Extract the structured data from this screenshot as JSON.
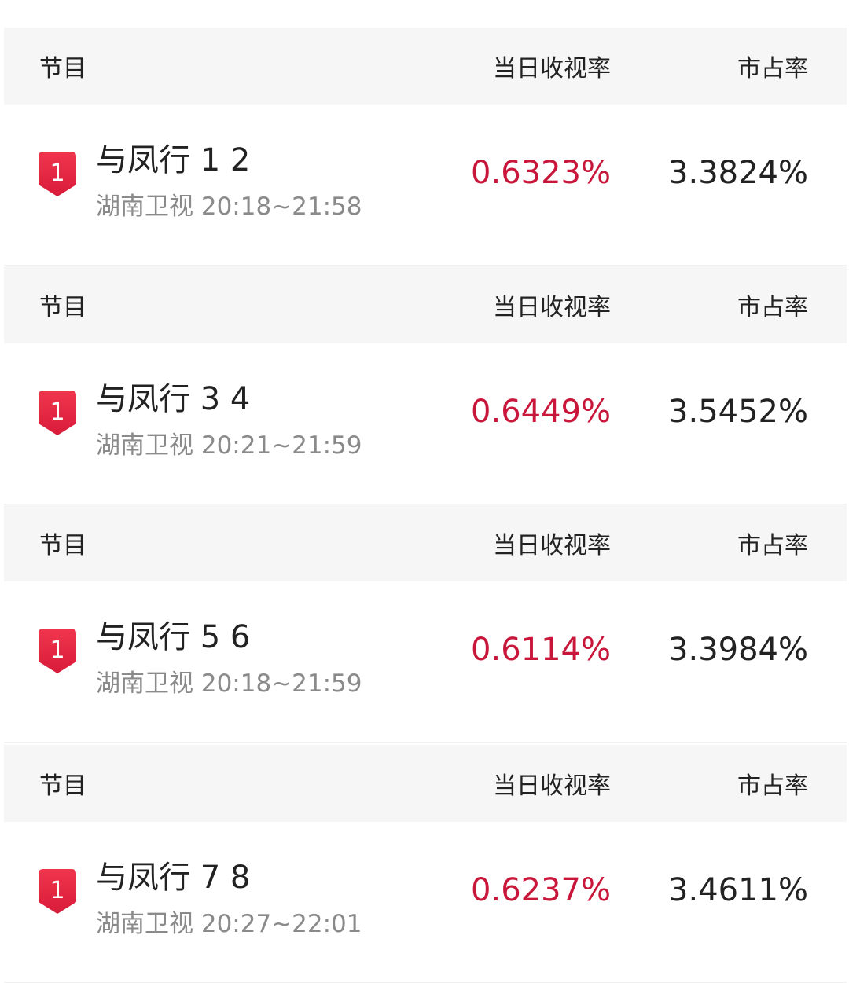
{
  "colors": {
    "rating": "#c8173a",
    "badge": "#e8263f",
    "header_bg": "#f6f6f6"
  },
  "headers": {
    "program": "节目",
    "daily_rating": "当日收视率",
    "market_share": "市占率"
  },
  "entries": [
    {
      "rank": "1",
      "title": "与凤行 1 2",
      "channel_time": "湖南卫视 20:18~21:58",
      "rating": "0.6323%",
      "share": "3.3824%"
    },
    {
      "rank": "1",
      "title": "与凤行 3 4",
      "channel_time": "湖南卫视 20:21~21:59",
      "rating": "0.6449%",
      "share": "3.5452%"
    },
    {
      "rank": "1",
      "title": "与凤行 5 6",
      "channel_time": "湖南卫视 20:18~21:59",
      "rating": "0.6114%",
      "share": "3.3984%"
    },
    {
      "rank": "1",
      "title": "与凤行 7 8",
      "channel_time": "湖南卫视 20:27~22:01",
      "rating": "0.6237%",
      "share": "3.4611%"
    }
  ]
}
